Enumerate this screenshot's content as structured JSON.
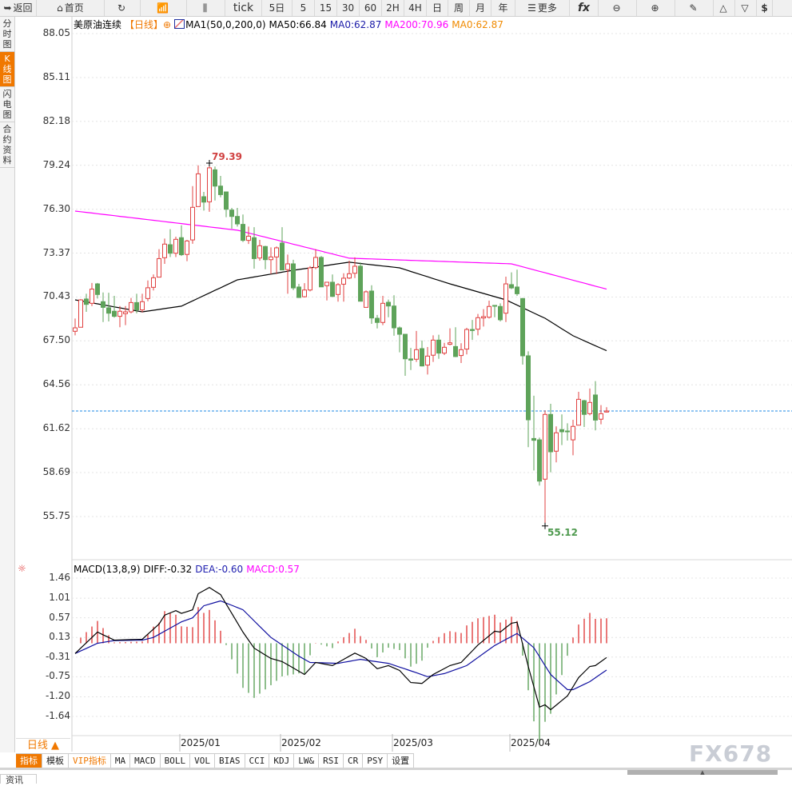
{
  "toolbar": [
    {
      "icon": "back-arrow-icon",
      "glyph": "➥",
      "label": "返回",
      "w": 46
    },
    {
      "icon": "home-icon",
      "glyph": "⌂",
      "label": "首页",
      "w": 85
    },
    {
      "icon": "refresh-icon",
      "glyph": "↻",
      "label": "",
      "w": 45
    },
    {
      "icon": "bar-chart-icon",
      "glyph": "📶",
      "label": "",
      "w": 58
    },
    {
      "icon": "candlestick-icon",
      "glyph": "⫼",
      "label": "",
      "w": 48
    },
    {
      "icon": "",
      "glyph": "",
      "label": "tick",
      "w": 46
    },
    {
      "icon": "",
      "glyph": "",
      "label": "5日",
      "w": 38
    },
    {
      "icon": "",
      "glyph": "",
      "label": "5",
      "w": 28
    },
    {
      "icon": "",
      "glyph": "",
      "label": "15",
      "w": 28
    },
    {
      "icon": "",
      "glyph": "",
      "label": "30",
      "w": 28
    },
    {
      "icon": "",
      "glyph": "",
      "label": "60",
      "w": 28
    },
    {
      "icon": "",
      "glyph": "",
      "label": "2H",
      "w": 28
    },
    {
      "icon": "",
      "glyph": "",
      "label": "4H",
      "w": 28
    },
    {
      "icon": "",
      "glyph": "",
      "label": "日",
      "w": 27
    },
    {
      "icon": "",
      "glyph": "",
      "label": "周",
      "w": 27
    },
    {
      "icon": "",
      "glyph": "",
      "label": "月",
      "w": 27
    },
    {
      "icon": "",
      "glyph": "",
      "label": "年",
      "w": 30
    },
    {
      "icon": "menu-icon",
      "glyph": "☰",
      "label": "更多",
      "w": 68
    },
    {
      "icon": "function-icon",
      "glyph": "",
      "label": "fx",
      "w": 36
    },
    {
      "icon": "zoom-out-icon",
      "glyph": "⊖",
      "label": "",
      "w": 48
    },
    {
      "icon": "zoom-in-icon",
      "glyph": "⊕",
      "label": "",
      "w": 48
    },
    {
      "icon": "pen-icon",
      "glyph": "✎",
      "label": "",
      "w": 48
    },
    {
      "icon": "triangle-up-icon",
      "glyph": "△",
      "label": "",
      "w": 27
    },
    {
      "icon": "triangle-down-icon",
      "glyph": "▽",
      "label": "",
      "w": 27
    },
    {
      "icon": "dollar-icon",
      "glyph": "",
      "label": "$",
      "w": 20
    }
  ],
  "side_tabs": [
    {
      "label": "分时图",
      "active": false
    },
    {
      "label": "K线图",
      "active": true
    },
    {
      "label": "闪电图",
      "active": false
    },
    {
      "label": "合约资料",
      "active": false
    }
  ],
  "legend": {
    "symbol": "美原油连续",
    "period": "【日线】",
    "indicator": "MA1(50,0,200,0)",
    "ma50": "MA50:66.84",
    "ma0_a": "MA0:62.87",
    "ma200": "MA200:70.96",
    "ma0_b": "MA0:62.87"
  },
  "macd_legend": {
    "name": "MACD(13,8,9)",
    "diff": "DIFF:-0.32",
    "dea": "DEA:-0.60",
    "macd": "MACD:0.57"
  },
  "period_selector": "日线 ▲",
  "bottom_tabs": [
    {
      "label": "指标",
      "style": "active"
    },
    {
      "label": "模板",
      "style": ""
    },
    {
      "label": "VIP指标",
      "style": "vip"
    },
    {
      "label": "MA",
      "style": ""
    },
    {
      "label": "MACD",
      "style": ""
    },
    {
      "label": "BOLL",
      "style": ""
    },
    {
      "label": "VOL",
      "style": ""
    },
    {
      "label": "BIAS",
      "style": ""
    },
    {
      "label": "CCI",
      "style": ""
    },
    {
      "label": "KDJ",
      "style": ""
    },
    {
      "label": "LW&",
      "style": ""
    },
    {
      "label": "RSI",
      "style": ""
    },
    {
      "label": "CR",
      "style": ""
    },
    {
      "label": "PSY",
      "style": ""
    },
    {
      "label": "设置",
      "style": ""
    }
  ],
  "news_tab": "资讯",
  "watermark": "FX678",
  "colors": {
    "up": "#e04040",
    "down": "#5ea35a",
    "ma50": "#000000",
    "ma200": "#ff00ff",
    "last_price": "#1e88e5",
    "diff": "#000000",
    "dea": "#1010a0",
    "accent": "#f07800"
  },
  "chart_data": [
    {
      "type": "candlestick",
      "title": "美原油连续",
      "y_ticks": [
        "88.05",
        "85.11",
        "82.18",
        "79.24",
        "76.30",
        "73.37",
        "70.43",
        "67.50",
        "64.56",
        "61.62",
        "58.69",
        "55.75"
      ],
      "ylim": [
        55.75,
        88.05
      ],
      "x_ticks": [
        {
          "label": "2025/01",
          "index": 19
        },
        {
          "label": "2025/02",
          "index": 37
        },
        {
          "label": "2025/03",
          "index": 57
        },
        {
          "label": "2025/04",
          "index": 78
        }
      ],
      "grid": true,
      "last_price": 62.81,
      "annotations": [
        {
          "label": "79.39",
          "index": 24,
          "value": 79.39,
          "kind": "high"
        },
        {
          "label": "55.12",
          "index": 84,
          "value": 55.12,
          "kind": "low"
        }
      ],
      "ohlc": [
        [
          68.14,
          68.99,
          67.87,
          68.37
        ],
        [
          68.41,
          70.3,
          68.4,
          70.24
        ],
        [
          70.3,
          70.65,
          69.44,
          69.94
        ],
        [
          70.01,
          71.37,
          69.83,
          70.96
        ],
        [
          71.31,
          71.37,
          70.33,
          70.6
        ],
        [
          70.12,
          70.74,
          68.76,
          69.74
        ],
        [
          69.71,
          70.72,
          68.8,
          69.35
        ],
        [
          69.48,
          70.51,
          69.05,
          69.14
        ],
        [
          69.14,
          69.83,
          68.41,
          69.48
        ],
        [
          69.32,
          69.83,
          68.55,
          69.44
        ],
        [
          69.44,
          70.37,
          69.34,
          70.06
        ],
        [
          70.06,
          70.65,
          69.34,
          69.57
        ],
        [
          69.57,
          70.65,
          69.4,
          70.12
        ],
        [
          70.33,
          71.54,
          70.15,
          71.05
        ],
        [
          71.08,
          71.94,
          70.87,
          71.72
        ],
        [
          71.76,
          73.63,
          71.76,
          73.0
        ],
        [
          73.06,
          74.34,
          72.65,
          73.97
        ],
        [
          73.93,
          74.97,
          73.1,
          73.36
        ],
        [
          73.36,
          74.47,
          73.1,
          74.29
        ],
        [
          74.4,
          75.23,
          73.18,
          73.26
        ],
        [
          73.28,
          74.25,
          72.83,
          74.18
        ],
        [
          74.25,
          77.85,
          73.99,
          76.43
        ],
        [
          76.48,
          79.24,
          76.48,
          78.67
        ],
        [
          77.14,
          77.46,
          76.21,
          76.78
        ],
        [
          76.8,
          79.39,
          76.13,
          79.07
        ],
        [
          78.94,
          79.16,
          76.89,
          77.85
        ],
        [
          77.85,
          78.53,
          77.1,
          77.28
        ],
        [
          77.46,
          77.46,
          75.77,
          76.3
        ],
        [
          76.25,
          76.39,
          75.0,
          75.82
        ],
        [
          75.82,
          76.39,
          75.14,
          75.32
        ],
        [
          75.29,
          75.95,
          74.11,
          74.22
        ],
        [
          74.22,
          75.14,
          73.98,
          74.5
        ],
        [
          74.4,
          75.1,
          72.33,
          73.0
        ],
        [
          73.04,
          74.25,
          72.86,
          73.86
        ],
        [
          73.81,
          73.86,
          72.29,
          72.93
        ],
        [
          72.93,
          73.75,
          71.97,
          73.11
        ],
        [
          73.11,
          73.81,
          71.97,
          73.72
        ],
        [
          74.04,
          75.1,
          72.24,
          72.24
        ],
        [
          72.26,
          73.27,
          70.65,
          72.65
        ],
        [
          72.65,
          72.92,
          70.9,
          71.04
        ],
        [
          71.1,
          71.31,
          70.37,
          70.4
        ],
        [
          70.45,
          71.36,
          70.4,
          70.9
        ],
        [
          70.9,
          72.5,
          70.81,
          72.38
        ],
        [
          72.4,
          73.63,
          72.29,
          73.08
        ],
        [
          73.08,
          73.18,
          71.11,
          71.11
        ],
        [
          71.19,
          71.42,
          70.2,
          71.42
        ],
        [
          71.42,
          71.94,
          70.47,
          70.47
        ],
        [
          70.6,
          71.36,
          70.12,
          71.26
        ],
        [
          71.29,
          72.02,
          70.12,
          71.69
        ],
        [
          71.7,
          72.86,
          71.63,
          71.99
        ],
        [
          72.02,
          73.08,
          71.7,
          72.49
        ],
        [
          72.49,
          72.74,
          70.15,
          70.15
        ],
        [
          69.74,
          70.87,
          69.74,
          70.78
        ],
        [
          70.83,
          71.22,
          68.64,
          69.03
        ],
        [
          69.01,
          69.23,
          68.33,
          68.73
        ],
        [
          68.73,
          70.51,
          68.55,
          70.01
        ],
        [
          70.08,
          70.26,
          69.08,
          69.83
        ],
        [
          69.83,
          70.55,
          67.84,
          68.37
        ],
        [
          68.37,
          68.46,
          66.73,
          67.94
        ],
        [
          67.94,
          67.94,
          65.16,
          66.3
        ],
        [
          66.29,
          67.03,
          65.55,
          66.21
        ],
        [
          66.27,
          68.16,
          66.09,
          66.91
        ],
        [
          66.98,
          67.52,
          65.79,
          65.82
        ],
        [
          65.88,
          67.09,
          65.25,
          66.48
        ],
        [
          66.54,
          67.87,
          66.09,
          67.55
        ],
        [
          67.55,
          67.91,
          66.3,
          66.68
        ],
        [
          66.68,
          67.37,
          66.55,
          67.07
        ],
        [
          67.27,
          68.34,
          67.21,
          67.37
        ],
        [
          67.12,
          68.41,
          66.41,
          66.45
        ],
        [
          66.52,
          67.34,
          66.02,
          66.91
        ],
        [
          66.95,
          68.37,
          66.59,
          68.26
        ],
        [
          68.26,
          68.9,
          67.57,
          68.19
        ],
        [
          68.28,
          69.3,
          67.87,
          69.05
        ],
        [
          69.03,
          69.62,
          68.46,
          69.12
        ],
        [
          69.08,
          70.19,
          68.99,
          69.8
        ],
        [
          69.87,
          69.89,
          69.08,
          69.83
        ],
        [
          69.8,
          70.01,
          68.8,
          68.91
        ],
        [
          69.35,
          71.79,
          68.76,
          71.31
        ],
        [
          71.26,
          72.08,
          70.96,
          71.04
        ],
        [
          71.1,
          72.26,
          70.51,
          70.65
        ],
        [
          70.33,
          70.37,
          65.91,
          66.5
        ],
        [
          66.5,
          66.8,
          60.39,
          62.22
        ],
        [
          60.97,
          63.83,
          58.83,
          60.85
        ],
        [
          60.88,
          61.03,
          57.82,
          58.12
        ],
        [
          58.25,
          62.85,
          55.12,
          62.58
        ],
        [
          62.58,
          63.29,
          58.71,
          60.08
        ],
        [
          60.12,
          61.78,
          59.37,
          61.35
        ],
        [
          61.56,
          62.58,
          60.53,
          61.42
        ],
        [
          61.47,
          61.99,
          60.83,
          61.44
        ],
        [
          60.88,
          62.22,
          59.85,
          61.78
        ],
        [
          61.86,
          64.09,
          61.86,
          63.59
        ],
        [
          63.5,
          63.56,
          61.74,
          62.58
        ],
        [
          62.63,
          64.31,
          62.52,
          63.38
        ],
        [
          63.88,
          64.81,
          61.51,
          62.2
        ],
        [
          62.26,
          63.2,
          61.92,
          62.63
        ],
        [
          62.74,
          63.06,
          62.7,
          62.81
        ]
      ],
      "ma50": [
        [
          0,
          70.24
        ],
        [
          12,
          69.44
        ],
        [
          19,
          69.82
        ],
        [
          29,
          71.58
        ],
        [
          39,
          72.22
        ],
        [
          49,
          72.76
        ],
        [
          58,
          72.38
        ],
        [
          67,
          71.31
        ],
        [
          77,
          70.24
        ],
        [
          84,
          69.01
        ],
        [
          89,
          67.84
        ],
        [
          95,
          66.84
        ]
      ],
      "ma200": [
        [
          0,
          76.18
        ],
        [
          29,
          74.9
        ],
        [
          49,
          73.03
        ],
        [
          78,
          72.65
        ],
        [
          95,
          70.96
        ]
      ]
    },
    {
      "type": "macd",
      "title": "MACD(13,8,9)",
      "y_ticks": [
        "1.46",
        "1.01",
        "0.57",
        "0.13",
        "-0.31",
        "-0.75",
        "-1.20",
        "-1.64"
      ],
      "ylim": [
        -1.64,
        1.46
      ],
      "diff": [
        [
          0,
          -0.23
        ],
        [
          4,
          0.25
        ],
        [
          7,
          0.07
        ],
        [
          12,
          0.09
        ],
        [
          15,
          0.43
        ],
        [
          16,
          0.63
        ],
        [
          18,
          0.73
        ],
        [
          19,
          0.67
        ],
        [
          21,
          0.75
        ],
        [
          22,
          1.11
        ],
        [
          24,
          1.25
        ],
        [
          26,
          1.09
        ],
        [
          30,
          0.25
        ],
        [
          32,
          -0.11
        ],
        [
          35,
          -0.34
        ],
        [
          37,
          -0.41
        ],
        [
          41,
          -0.7
        ],
        [
          43,
          -0.43
        ],
        [
          46,
          -0.5
        ],
        [
          50,
          -0.22
        ],
        [
          52,
          -0.34
        ],
        [
          54,
          -0.57
        ],
        [
          56,
          -0.5
        ],
        [
          58,
          -0.61
        ],
        [
          60,
          -0.88
        ],
        [
          62,
          -0.9
        ],
        [
          64,
          -0.7
        ],
        [
          67,
          -0.5
        ],
        [
          69,
          -0.43
        ],
        [
          72,
          -0.04
        ],
        [
          75,
          0.27
        ],
        [
          76,
          0.25
        ],
        [
          78,
          0.45
        ],
        [
          79,
          0.47
        ],
        [
          81,
          -0.52
        ],
        [
          83,
          -1.43
        ],
        [
          84,
          -1.38
        ],
        [
          85,
          -1.49
        ],
        [
          88,
          -1.18
        ],
        [
          90,
          -0.77
        ],
        [
          92,
          -0.52
        ],
        [
          93,
          -0.5
        ],
        [
          95,
          -0.32
        ]
      ],
      "dea": [
        [
          0,
          -0.23
        ],
        [
          4,
          0.0
        ],
        [
          7,
          0.06
        ],
        [
          12,
          0.07
        ],
        [
          14,
          0.13
        ],
        [
          19,
          0.48
        ],
        [
          21,
          0.57
        ],
        [
          23,
          0.84
        ],
        [
          26,
          0.95
        ],
        [
          30,
          0.75
        ],
        [
          35,
          0.13
        ],
        [
          40,
          -0.29
        ],
        [
          42,
          -0.43
        ],
        [
          47,
          -0.45
        ],
        [
          51,
          -0.36
        ],
        [
          56,
          -0.45
        ],
        [
          61,
          -0.66
        ],
        [
          63,
          -0.75
        ],
        [
          66,
          -0.68
        ],
        [
          70,
          -0.5
        ],
        [
          75,
          -0.05
        ],
        [
          79,
          0.22
        ],
        [
          82,
          -0.1
        ],
        [
          85,
          -0.7
        ],
        [
          88,
          -1.04
        ],
        [
          89,
          -1.04
        ],
        [
          92,
          -0.86
        ],
        [
          95,
          -0.6
        ]
      ],
      "histogram": "2*(DIFF-DEA)"
    }
  ]
}
